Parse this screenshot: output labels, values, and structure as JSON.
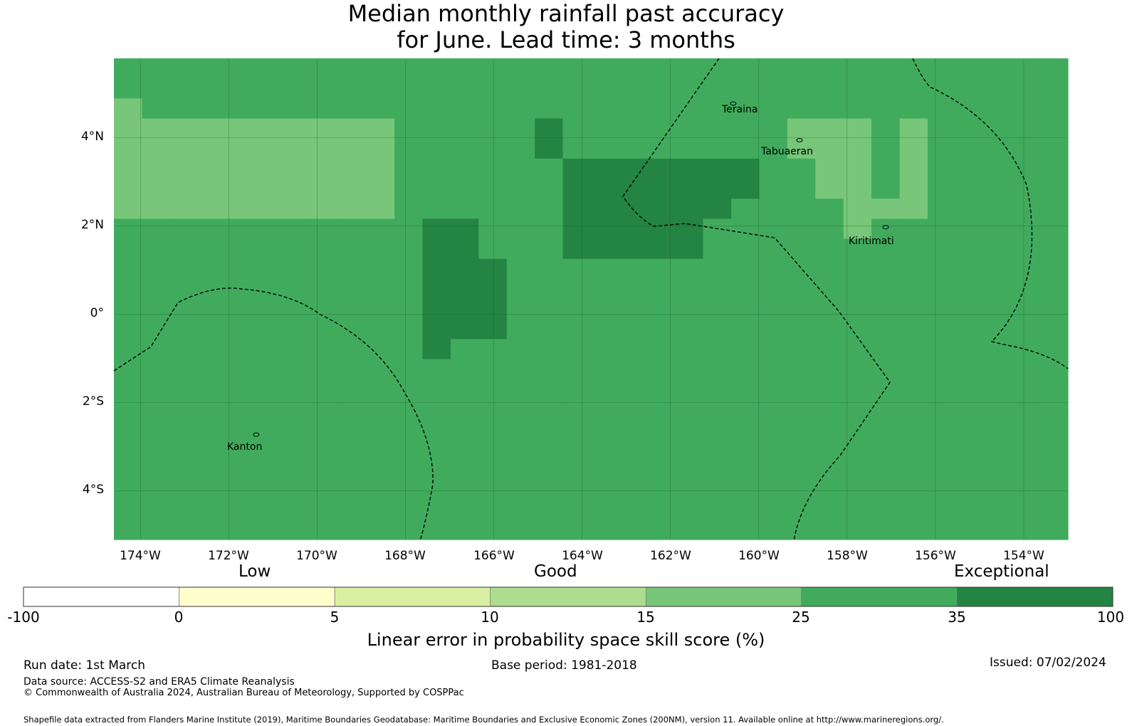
{
  "title": {
    "line1": "Median monthly rainfall past accuracy",
    "line2": "for June. Lead time: 3 months"
  },
  "map": {
    "lon_range": [
      -174.6,
      -153.0
    ],
    "lat_range": [
      -5.1,
      5.8
    ],
    "lon_ticks": [
      {
        "value": -174,
        "label": "174°W"
      },
      {
        "value": -172,
        "label": "172°W"
      },
      {
        "value": -170,
        "label": "170°W"
      },
      {
        "value": -168,
        "label": "168°W"
      },
      {
        "value": -166,
        "label": "166°W"
      },
      {
        "value": -164,
        "label": "164°W"
      },
      {
        "value": -162,
        "label": "162°W"
      },
      {
        "value": -160,
        "label": "160°W"
      },
      {
        "value": -158,
        "label": "158°W"
      },
      {
        "value": -156,
        "label": "156°W"
      },
      {
        "value": -154,
        "label": "154°W"
      }
    ],
    "lat_ticks": [
      {
        "value": 4,
        "label": "4°N"
      },
      {
        "value": 2,
        "label": "2°N"
      },
      {
        "value": 0,
        "label": "0°"
      },
      {
        "value": -2,
        "label": "2°S"
      },
      {
        "value": -4,
        "label": "4°S"
      }
    ],
    "places": [
      {
        "name": "Teraina",
        "lon": -160.9,
        "lat": 4.68
      },
      {
        "name": "Tabuaeran",
        "lon": -159.4,
        "lat": 3.85
      },
      {
        "name": "Kiritimati",
        "lon": -157.45,
        "lat": 1.88
      },
      {
        "name": "Kanton",
        "lon": -171.7,
        "lat": -2.82
      }
    ],
    "grid_cell_deg": 0.833,
    "grid_class_rows": [
      "5555555555555555555555555555555555",
      "5555555555555555555555555555555555",
      "4555555555555555555555555555555555",
      "4444444444555556555555554445455555",
      "4444444444555556555555554445455555",
      "4444444444555555666666655445455555",
      "4444444444555555666666655445455555",
      "4444444444555555666666555544455555",
      "5555555555566555666665555545555555",
      "5555555555566555666665555555555555",
      "5555555555566655555555555555555555",
      "5555555555566655555555555555555555",
      "5555555555566655555555555555555555",
      "5555555555566655555555555555555555",
      "5555555555565555555555555555555555",
      "5555555555555555555555555555555555",
      "5555555555555555555555555555555555",
      "5555555555555555555555555555555555",
      "5555555555555555555555555555555555",
      "5555555555555555555555555555555555",
      "5555555555555555555555555555555555",
      "5555555555555555555555555555555555",
      "5555555555555555555555555555555555",
      "5555555555555555555555555555555555"
    ]
  },
  "legend": {
    "categories": [
      "Low",
      "Good",
      "Exceptional"
    ],
    "ticks": [
      "-100",
      "0",
      "5",
      "10",
      "15",
      "25",
      "35",
      "100"
    ],
    "colors": [
      "#ffffff",
      "#ffffcc",
      "#d9f0a3",
      "#addd8e",
      "#78c679",
      "#41ab5d",
      "#238443"
    ],
    "title": "Linear error in probability space skill score (%)"
  },
  "footer": {
    "run_date": "Run date: 1st March",
    "base_period": "Base period: 1981-2018",
    "issued": "Issued: 07/02/2024",
    "data_source": "Data source: ACCESS-S2 and ERA5 Climate Reanalysis",
    "copyright": "© Commonwealth of Australia 2024, Australian Bureau of Meteorology, Supported by COSPPac",
    "shapefile": "Shapefile data extracted from Flanders Marine Institute (2019), Maritime Boundaries Geodatabase: Maritime Boundaries and Exclusive Economic Zones (200NM), version 11. Available online at http://www.marineregions.org/."
  }
}
